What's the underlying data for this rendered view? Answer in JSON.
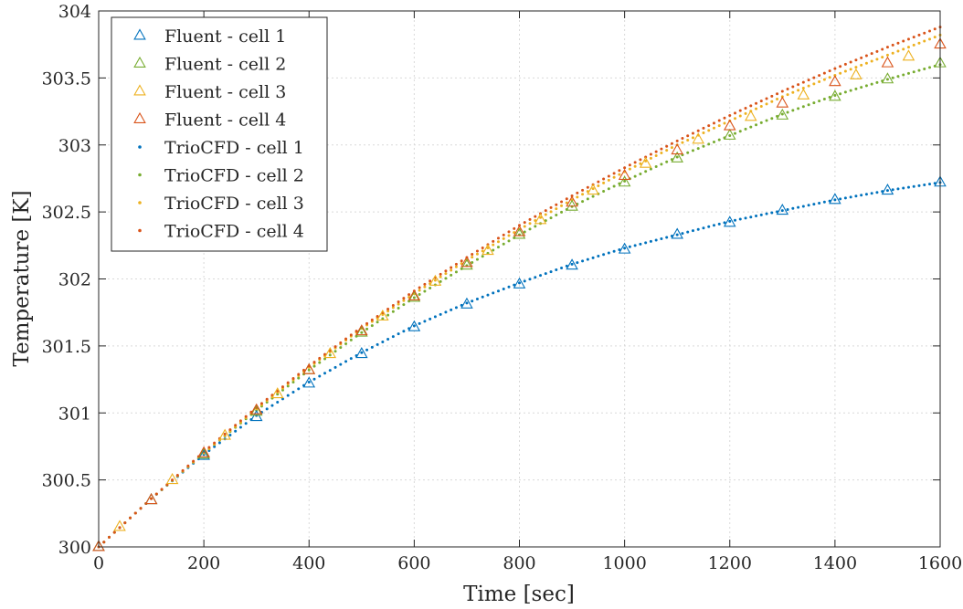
{
  "chart_data": {
    "type": "scatter",
    "xlabel": "Time [sec]",
    "ylabel": "Temperature [K]",
    "xlim": [
      0,
      1600
    ],
    "ylim": [
      300,
      304
    ],
    "xticks": [
      "0",
      "200",
      "400",
      "600",
      "800",
      "1000",
      "1200",
      "1400",
      "1600"
    ],
    "yticks": [
      "300",
      "300.5",
      "301",
      "301.5",
      "302",
      "302.5",
      "303",
      "303.5",
      "304"
    ],
    "grid": true,
    "legend_position": "top-left",
    "series": [
      {
        "name": "Fluent - cell 1",
        "marker": "triangle",
        "color": "#0072BD",
        "x": [
          0,
          100,
          200,
          300,
          400,
          500,
          600,
          700,
          800,
          900,
          1000,
          1100,
          1200,
          1300,
          1400,
          1500,
          1600
        ],
        "y": [
          300.0,
          300.35,
          300.68,
          300.97,
          301.22,
          301.44,
          301.64,
          301.81,
          301.96,
          302.1,
          302.22,
          302.33,
          302.42,
          302.51,
          302.59,
          302.66,
          302.72
        ]
      },
      {
        "name": "Fluent - cell 2",
        "marker": "triangle",
        "color": "#77AC30",
        "x": [
          0,
          100,
          200,
          300,
          400,
          500,
          600,
          700,
          800,
          900,
          1000,
          1100,
          1200,
          1300,
          1400,
          1500,
          1600
        ],
        "y": [
          300.0,
          300.35,
          300.69,
          301.01,
          301.32,
          301.6,
          301.86,
          302.1,
          302.33,
          302.54,
          302.72,
          302.9,
          303.07,
          303.22,
          303.36,
          303.49,
          303.61
        ]
      },
      {
        "name": "Fluent - cell 3",
        "marker": "triangle",
        "color": "#EDB120",
        "x": [
          40,
          140,
          240,
          340,
          440,
          540,
          640,
          740,
          840,
          940,
          1040,
          1140,
          1240,
          1340,
          1440,
          1540
        ],
        "y": [
          300.15,
          300.5,
          300.83,
          301.14,
          301.44,
          301.72,
          301.98,
          302.21,
          302.44,
          302.66,
          302.86,
          303.04,
          303.21,
          303.37,
          303.52,
          303.66
        ]
      },
      {
        "name": "Fluent - cell 4",
        "marker": "triangle",
        "color": "#D95319",
        "x": [
          0,
          100,
          200,
          300,
          400,
          500,
          600,
          700,
          800,
          900,
          1000,
          1100,
          1200,
          1300,
          1400,
          1500,
          1600
        ],
        "y": [
          300.0,
          300.35,
          300.7,
          301.02,
          301.32,
          301.61,
          301.87,
          302.12,
          302.35,
          302.57,
          302.77,
          302.96,
          303.14,
          303.31,
          303.47,
          303.61,
          303.75
        ]
      },
      {
        "name": "TrioCFD - cell 1",
        "marker": "dot",
        "color": "#0072BD",
        "x": [
          0,
          100,
          200,
          300,
          400,
          500,
          600,
          700,
          800,
          900,
          1000,
          1100,
          1200,
          1300,
          1400,
          1500,
          1600
        ],
        "y": [
          300.0,
          300.36,
          300.69,
          300.98,
          301.23,
          301.45,
          301.65,
          301.82,
          301.97,
          302.11,
          302.23,
          302.33,
          302.43,
          302.51,
          302.59,
          302.66,
          302.72
        ]
      },
      {
        "name": "TrioCFD - cell 2",
        "marker": "dot",
        "color": "#77AC30",
        "x": [
          0,
          100,
          200,
          300,
          400,
          500,
          600,
          700,
          800,
          900,
          1000,
          1100,
          1200,
          1300,
          1400,
          1500,
          1600
        ],
        "y": [
          300.0,
          300.36,
          300.7,
          301.02,
          301.32,
          301.6,
          301.86,
          302.1,
          302.33,
          302.54,
          302.73,
          302.91,
          303.07,
          303.23,
          303.37,
          303.49,
          303.6
        ]
      },
      {
        "name": "TrioCFD - cell 3",
        "marker": "dot",
        "color": "#EDB120",
        "x": [
          0,
          100,
          200,
          300,
          400,
          500,
          600,
          700,
          800,
          900,
          1000,
          1100,
          1200,
          1300,
          1400,
          1500,
          1600
        ],
        "y": [
          300.0,
          300.36,
          300.7,
          301.03,
          301.34,
          301.63,
          301.89,
          302.14,
          302.37,
          302.59,
          302.8,
          303.0,
          303.18,
          303.36,
          303.52,
          303.67,
          303.82
        ]
      },
      {
        "name": "TrioCFD - cell 4",
        "marker": "dot",
        "color": "#D95319",
        "x": [
          0,
          100,
          200,
          300,
          400,
          500,
          600,
          700,
          800,
          900,
          1000,
          1100,
          1200,
          1300,
          1400,
          1500,
          1600
        ],
        "y": [
          300.0,
          300.36,
          300.71,
          301.04,
          301.35,
          301.64,
          301.91,
          302.16,
          302.4,
          302.62,
          302.83,
          303.03,
          303.22,
          303.4,
          303.57,
          303.73,
          303.88
        ]
      }
    ]
  }
}
